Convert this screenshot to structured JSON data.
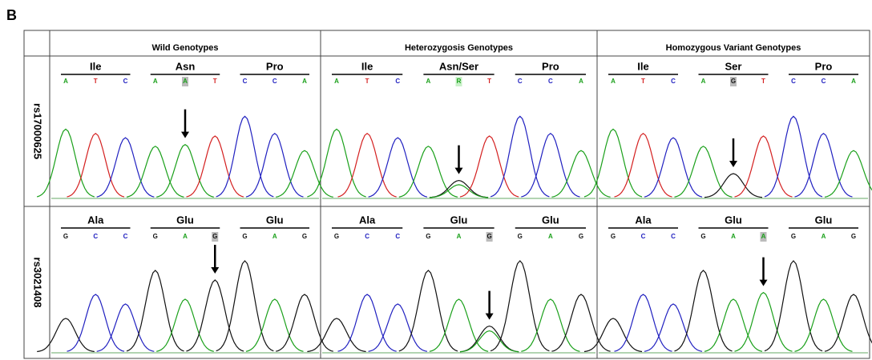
{
  "panel_label": "B",
  "columns": [
    "Wild Genotypes",
    "Heterozygosis Genotypes",
    "Homozygous Variant Genotypes"
  ],
  "rows": [
    {
      "label": "rs17000625",
      "cells": [
        [
          {
            "aa": "Ile",
            "bases": [
              "A",
              "T",
              "C"
            ]
          },
          {
            "aa": "Asn",
            "bases": [
              "A",
              "A",
              "T"
            ]
          },
          {
            "aa": "Pro",
            "bases": [
              "C",
              "C",
              "A"
            ]
          }
        ],
        [
          {
            "aa": "Ile",
            "bases": [
              "A",
              "T",
              "C"
            ]
          },
          {
            "aa": "Asn/Ser",
            "bases": [
              "A",
              "R",
              "T"
            ]
          },
          {
            "aa": "Pro",
            "bases": [
              "C",
              "C",
              "A"
            ]
          }
        ],
        [
          {
            "aa": "Ile",
            "bases": [
              "A",
              "T",
              "C"
            ]
          },
          {
            "aa": "Ser",
            "bases": [
              "A",
              "G",
              "T"
            ]
          },
          {
            "aa": "Pro",
            "bases": [
              "C",
              "C",
              "A"
            ]
          }
        ]
      ]
    },
    {
      "label": "rs3021408",
      "cells": [
        [
          {
            "aa": "Ala",
            "bases": [
              "G",
              "C",
              "C"
            ]
          },
          {
            "aa": "Glu",
            "bases": [
              "G",
              "A",
              "G"
            ]
          },
          {
            "aa": "Glu",
            "bases": [
              "G",
              "A",
              "G"
            ]
          }
        ],
        [
          {
            "aa": "Ala",
            "bases": [
              "G",
              "C",
              "C"
            ]
          },
          {
            "aa": "Glu",
            "bases": [
              "G",
              "A",
              "G"
            ]
          },
          {
            "aa": "Glu",
            "bases": [
              "G",
              "A",
              "G"
            ]
          }
        ],
        [
          {
            "aa": "Ala",
            "bases": [
              "G",
              "C",
              "C"
            ]
          },
          {
            "aa": "Glu",
            "bases": [
              "G",
              "A",
              "A"
            ]
          },
          {
            "aa": "Glu",
            "bases": [
              "G",
              "A",
              "G"
            ]
          }
        ]
      ]
    }
  ]
}
